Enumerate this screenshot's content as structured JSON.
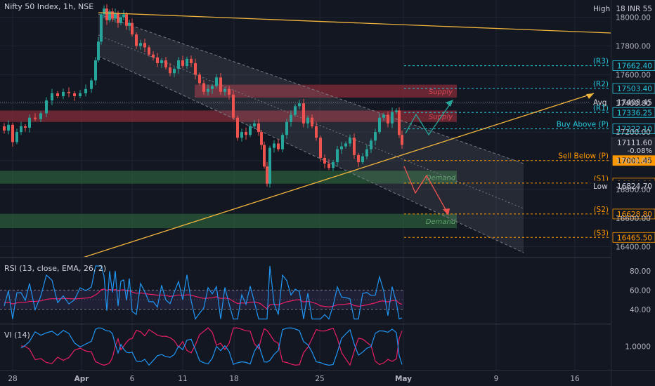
{
  "header": {
    "title": "Nifty 50 Index, 1h, NSE"
  },
  "colors": {
    "bg": "#131722",
    "grid": "#1f2433",
    "up": "#26a69a",
    "down": "#ef5350",
    "text": "#b2b5be",
    "trend": "#f0b43c",
    "cyan": "#26c6da",
    "orange": "#ff9800",
    "supply": "#9c2f3c",
    "demand": "#2e6b3e",
    "rsi": "#2196f3",
    "rsi_ma": "#e91e63",
    "vi_plus": "#2196f3",
    "vi_minus": "#e91e63"
  },
  "chart_data": {
    "type": "candlestick",
    "price_axis": {
      "ticks": [
        "18000.00",
        "17800.00",
        "17600.00",
        "17400.00",
        "17200.00",
        "17000.00",
        "16800.00",
        "16600.00",
        "16400.00"
      ],
      "ylim": [
        16330,
        18120
      ]
    },
    "x_axis": {
      "ticks": [
        "28",
        "Apr",
        "6",
        "11",
        "18",
        "25",
        "May",
        "9",
        "16"
      ]
    },
    "levels": [
      {
        "id": "r3",
        "tag": "(R3)",
        "price": 17662.4,
        "label": "17662.40"
      },
      {
        "id": "r2",
        "tag": "(R2)",
        "price": 17503.4,
        "label": "17503.40"
      },
      {
        "id": "avg",
        "tag": "Avg",
        "price": 17408.45,
        "label": "17408.45"
      },
      {
        "id": "r1",
        "tag": "(R1)",
        "price": 17336.25,
        "label": "17336.25"
      },
      {
        "id": "p_up",
        "tag": "Buy Above (P)",
        "price": 17222.1,
        "label": "17222.10"
      },
      {
        "id": "p_dn",
        "tag": "Sell Below (P)",
        "price": 17001.45,
        "label": "17001.45"
      },
      {
        "id": "s1",
        "tag": "(S1)",
        "price": 16844.1,
        "label": "16844.10"
      },
      {
        "id": "low",
        "tag": "Low",
        "price": 16824.7,
        "label": "16824.70"
      },
      {
        "id": "s2",
        "tag": "(S2)",
        "price": 16628.8,
        "label": "16628.80"
      },
      {
        "id": "s3",
        "tag": "(S3)",
        "price": 16465.5,
        "label": "16465.50"
      }
    ],
    "high": {
      "tag": "High",
      "label": "18 INR 55"
    },
    "last": {
      "label": "17111.60",
      "change": "-0.08%"
    },
    "zones": [
      {
        "label": "Supply",
        "top": 17530,
        "bottom": 17440
      },
      {
        "label": "Supply",
        "top": 17350,
        "bottom": 17270
      },
      {
        "label": "Demand",
        "top": 16930,
        "bottom": 16840
      },
      {
        "label": "Demand",
        "top": 16630,
        "bottom": 16530
      }
    ],
    "rsi": {
      "title": "RSI (13, close, EMA, 26, 2)",
      "ticks": [
        "80.00",
        "60.00",
        "40.00"
      ],
      "ylim": [
        26,
        93
      ],
      "band": [
        40,
        60
      ]
    },
    "vi": {
      "title": "VI (14)",
      "ticks": [
        "1.0000"
      ],
      "ylim": [
        0.6,
        1.38
      ]
    }
  }
}
